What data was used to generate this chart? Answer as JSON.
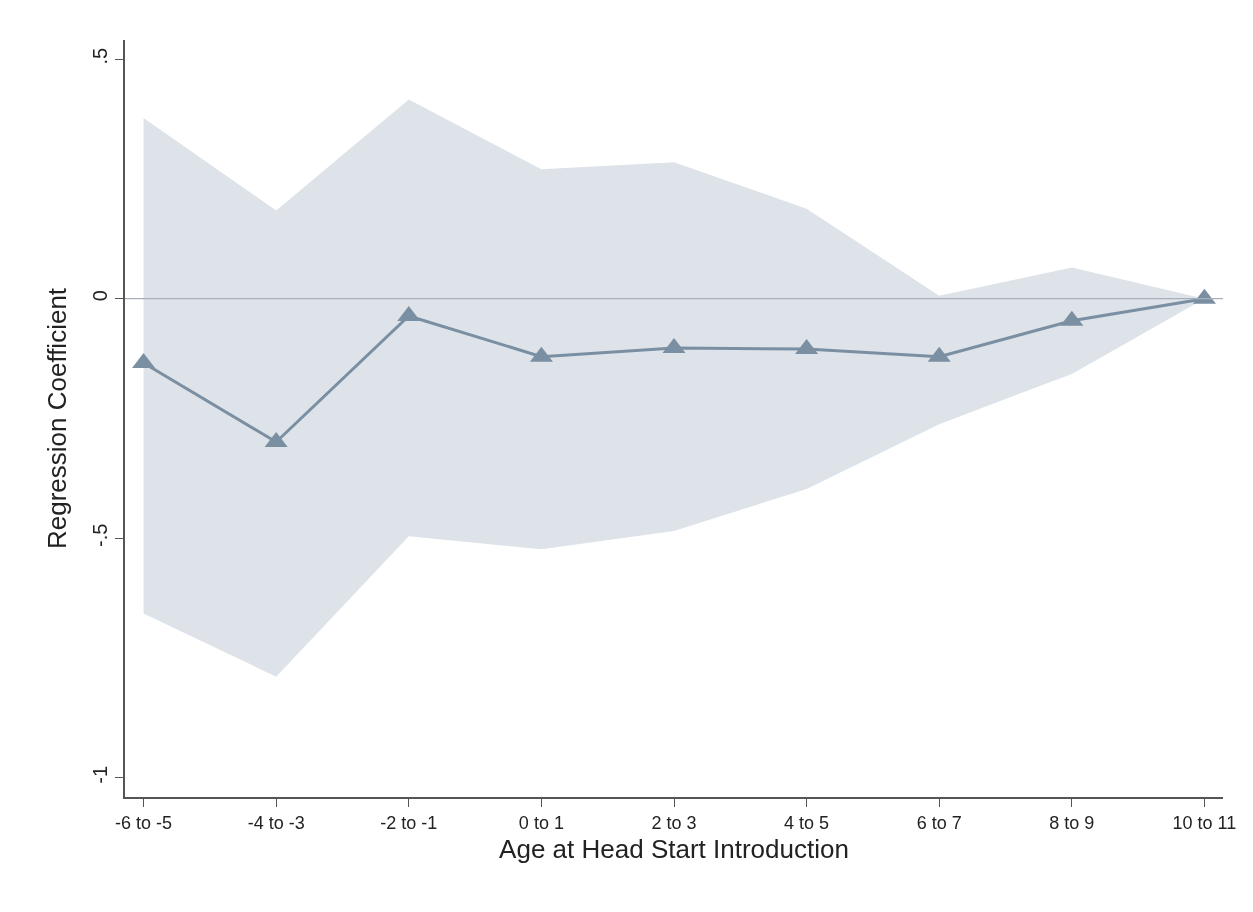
{
  "chart_data": {
    "type": "line",
    "xlabel": "Age at Head Start Introduction",
    "ylabel": "Regression Coefficient",
    "categories": [
      "-6 to -5",
      "-4 to -3",
      "-2 to -1",
      "0 to 1",
      "2 to 3",
      "4 to 5",
      "6 to 7",
      "8 to 9",
      "10 to 11"
    ],
    "series": [
      {
        "color": "#7b8fa3",
        "values": [
          -0.134,
          -0.299,
          -0.036,
          -0.121,
          -0.103,
          -0.105,
          -0.121,
          -0.046,
          0.0
        ],
        "upper": [
          0.377,
          0.184,
          0.416,
          0.27,
          0.285,
          0.188,
          0.006,
          0.065,
          0.0
        ],
        "lower": [
          -0.657,
          -0.789,
          -0.496,
          -0.523,
          -0.485,
          -0.397,
          -0.262,
          -0.157,
          0.0
        ]
      }
    ],
    "ylim": [
      -1.04,
      0.54
    ],
    "yticks": [
      {
        "value": -1,
        "label": "-1"
      },
      {
        "value": -0.5,
        "label": "-.5"
      },
      {
        "value": 0,
        "label": "0"
      },
      {
        "value": 0.5,
        "label": ".5"
      }
    ],
    "ref_lines": [
      {
        "axis": "y",
        "value": 0,
        "color": "#a7b0ba"
      }
    ],
    "marker": "triangle",
    "line_style": "solid"
  }
}
